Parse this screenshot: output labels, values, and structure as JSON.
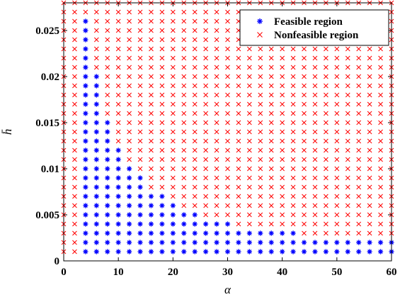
{
  "chart_data": {
    "type": "scatter",
    "title": "",
    "xlabel": "α",
    "ylabel": "h̄",
    "xlim": [
      0,
      60
    ],
    "ylim": [
      0,
      0.028
    ],
    "x_step": 2,
    "y_step": 0.001,
    "x_ticks": [
      0,
      10,
      20,
      30,
      40,
      50,
      60
    ],
    "x_tick_labels": [
      "0",
      "10",
      "20",
      "30",
      "40",
      "50",
      "60"
    ],
    "y_ticks": [
      0,
      0.005,
      0.01,
      0.015,
      0.02,
      0.025
    ],
    "y_tick_labels": [
      "0",
      "0.005",
      "0.01",
      "0.015",
      "0.02",
      "0.025"
    ],
    "grid": false,
    "legend_position": "top-right",
    "series": [
      {
        "name": "Feasible region",
        "marker": "asterisk",
        "color": "#0000ff",
        "columns": [
          {
            "x": 4,
            "ymin": 0.001,
            "ymax": 0.026
          },
          {
            "x": 6,
            "ymin": 0.001,
            "ymax": 0.02
          },
          {
            "x": 8,
            "ymin": 0.001,
            "ymax": 0.015
          },
          {
            "x": 10,
            "ymin": 0.001,
            "ymax": 0.012
          },
          {
            "x": 12,
            "ymin": 0.001,
            "ymax": 0.01
          },
          {
            "x": 14,
            "ymin": 0.001,
            "ymax": 0.009
          },
          {
            "x": 16,
            "ymin": 0.001,
            "ymax": 0.007
          },
          {
            "x": 18,
            "ymin": 0.001,
            "ymax": 0.007
          },
          {
            "x": 20,
            "ymin": 0.001,
            "ymax": 0.006
          },
          {
            "x": 22,
            "ymin": 0.001,
            "ymax": 0.005
          },
          {
            "x": 24,
            "ymin": 0.001,
            "ymax": 0.005
          },
          {
            "x": 26,
            "ymin": 0.001,
            "ymax": 0.004
          },
          {
            "x": 28,
            "ymin": 0.001,
            "ymax": 0.004
          },
          {
            "x": 30,
            "ymin": 0.001,
            "ymax": 0.004
          },
          {
            "x": 32,
            "ymin": 0.001,
            "ymax": 0.003
          },
          {
            "x": 34,
            "ymin": 0.001,
            "ymax": 0.003
          },
          {
            "x": 36,
            "ymin": 0.001,
            "ymax": 0.003
          },
          {
            "x": 38,
            "ymin": 0.001,
            "ymax": 0.003
          },
          {
            "x": 40,
            "ymin": 0.001,
            "ymax": 0.003
          },
          {
            "x": 42,
            "ymin": 0.001,
            "ymax": 0.003
          },
          {
            "x": 44,
            "ymin": 0.001,
            "ymax": 0.002
          },
          {
            "x": 46,
            "ymin": 0.001,
            "ymax": 0.002
          },
          {
            "x": 48,
            "ymin": 0.001,
            "ymax": 0.002
          },
          {
            "x": 50,
            "ymin": 0.001,
            "ymax": 0.002
          },
          {
            "x": 52,
            "ymin": 0.001,
            "ymax": 0.002
          },
          {
            "x": 54,
            "ymin": 0.001,
            "ymax": 0.002
          },
          {
            "x": 56,
            "ymin": 0.001,
            "ymax": 0.002
          },
          {
            "x": 58,
            "ymin": 0.001,
            "ymax": 0.002
          },
          {
            "x": 60,
            "ymin": 0.001,
            "ymax": 0.002
          }
        ]
      },
      {
        "name": "Nonfeasible region",
        "marker": "x",
        "color": "#ff0000",
        "note_rule": "all grid points x in 0..60 step 2, y in 0.001..0.028 step 0.001 not in feasible region"
      }
    ]
  }
}
